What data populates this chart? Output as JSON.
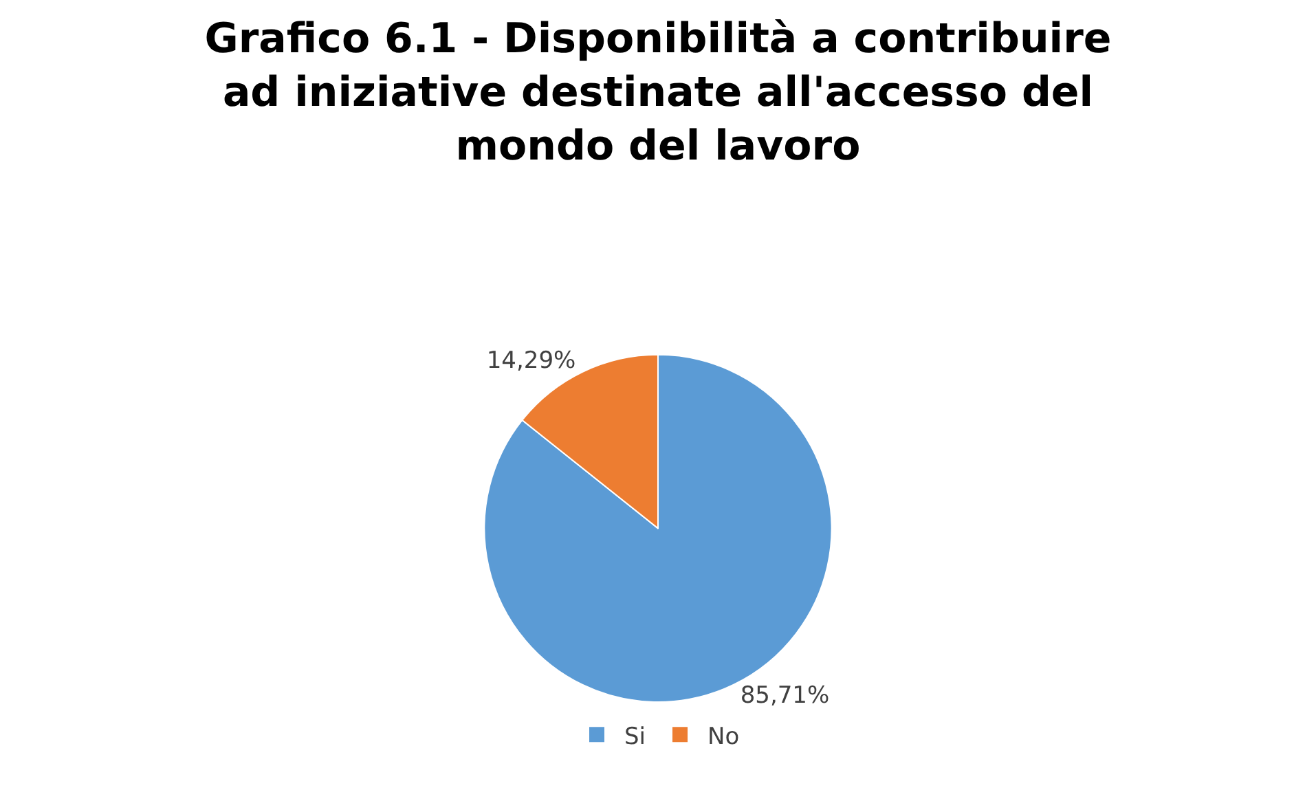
{
  "chart_data": {
    "type": "pie",
    "title": "Grafico 6.1 - Disponibilità a contribuire ad iniziative destinate all'accesso del mondo del lavoro",
    "categories": [
      "Si",
      "No"
    ],
    "values": [
      85.71,
      14.29
    ],
    "value_labels": [
      "85,71%",
      "14,29%"
    ],
    "colors": [
      "#5b9bd5",
      "#ed7d31"
    ],
    "legend": "bottom"
  }
}
